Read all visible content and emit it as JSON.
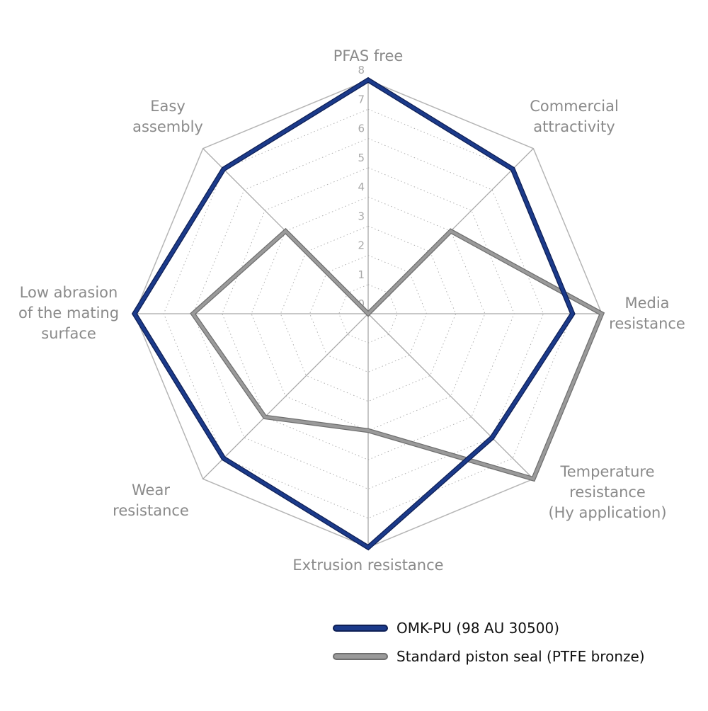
{
  "chart_data": {
    "type": "radar",
    "axes": [
      {
        "label": [
          "PFAS free"
        ]
      },
      {
        "label": [
          "Commercial",
          "attractivity"
        ]
      },
      {
        "label": [
          "Media",
          "resistance"
        ]
      },
      {
        "label": [
          "Temperature",
          "resistance",
          "(Hy application)"
        ]
      },
      {
        "label": [
          "Extrusion resistance"
        ]
      },
      {
        "label": [
          "Wear",
          "resistance"
        ]
      },
      {
        "label": [
          "Low abrasion",
          "of the mating",
          "surface"
        ]
      },
      {
        "label": [
          "Easy",
          "assembly"
        ]
      }
    ],
    "ticks": [
      "0",
      "1",
      "2",
      "3",
      "4",
      "5",
      "6",
      "7",
      "8"
    ],
    "range": [
      0,
      8
    ],
    "series": [
      {
        "name": "OMK-PU (98 AU 30500)",
        "color": "#1b3a8a",
        "values": [
          8,
          7,
          7,
          6,
          8,
          7,
          8,
          7
        ]
      },
      {
        "name": "Standard piston seal (PTFE bronze)",
        "color": "#9a9a9a",
        "values": [
          0,
          4,
          8,
          8,
          4,
          5,
          6,
          4
        ]
      }
    ],
    "grid": true,
    "legend_position": "bottom-right"
  }
}
